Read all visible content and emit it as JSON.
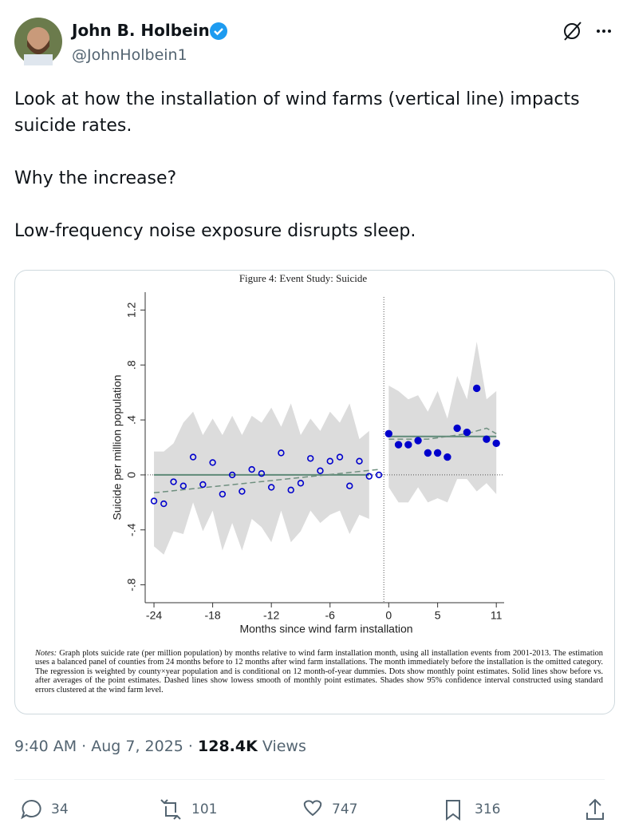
{
  "header": {
    "name": "John B. Holbein",
    "handle": "@JohnHolbein1"
  },
  "text": [
    "Look at how the installation of wind farms (vertical line) impacts suicide rates.",
    "Why the increase?",
    "Low-frequency noise exposure disrupts sleep."
  ],
  "chart_data": {
    "type": "scatter",
    "title": "Figure 4: Event Study: Suicide",
    "ylabel": "Suicide per million population",
    "xlabel": "Months since wind farm installation",
    "notes_label": "Notes:",
    "notes": "Graph plots suicide rate (per million population) by months relative to wind farm installation month, using all installation events from 2001-2013. The estimation uses a balanced panel of counties from 24 months before to 12 months after wind farm installations. The month immediately before the installation is the omitted category. The regression is weighted by county×year population and is conditional on 12 month-of-year dummies. Dots show monthly point estimates. Solid lines show before vs. after averages of the point estimates. Dashed lines show lowess smooth of monthly point estimates. Shades show 95% confidence interval constructed using standard errors clustered at the wind farm level.",
    "xlim": [
      -24.9,
      11.8
    ],
    "ylim": [
      -0.93,
      1.33
    ],
    "xticks": [
      -24,
      -18,
      -12,
      -6,
      0,
      5,
      11
    ],
    "yticks": [
      {
        "value": -0.8,
        "label": "-.8"
      },
      {
        "value": -0.4,
        "label": "-.4"
      },
      0,
      {
        "value": 0.4,
        "label": ".4"
      },
      {
        "value": 0.8,
        "label": ".8"
      },
      1.2
    ],
    "vline": -0.5,
    "hline": 0,
    "band_color": "#dcdcdc",
    "mean_color": "#5f8a78",
    "lowess_color": "#6f8f7f",
    "series": [
      {
        "color": "#0000cc",
        "marker": "hollow",
        "x": [
          -24,
          -23,
          -22,
          -21,
          -20,
          -19,
          -18,
          -17,
          -16,
          -15,
          -14,
          -13,
          -12,
          -11,
          -10,
          -9,
          -8,
          -7,
          -6,
          -5,
          -4,
          -3,
          -2,
          -1
        ],
        "values": [
          -0.19,
          -0.21,
          -0.05,
          -0.08,
          0.13,
          -0.07,
          0.09,
          -0.14,
          0.0,
          -0.12,
          0.04,
          0.01,
          -0.09,
          0.16,
          -0.11,
          -0.06,
          0.12,
          0.03,
          0.1,
          0.13,
          -0.08,
          0.1,
          -0.01,
          0.0
        ],
        "ci_upper": [
          0.17,
          0.17,
          0.23,
          0.38,
          0.46,
          0.29,
          0.41,
          0.29,
          0.43,
          0.29,
          0.43,
          0.38,
          0.49,
          0.35,
          0.52,
          0.29,
          0.41,
          0.32,
          0.46,
          0.38,
          0.52,
          0.26,
          0.32,
          null
        ],
        "ci_lower": [
          -0.52,
          -0.58,
          -0.41,
          -0.43,
          -0.2,
          -0.41,
          -0.26,
          -0.55,
          -0.35,
          -0.55,
          -0.32,
          -0.38,
          -0.49,
          -0.26,
          -0.49,
          -0.41,
          -0.26,
          -0.35,
          -0.29,
          -0.26,
          -0.43,
          -0.29,
          -0.32,
          null
        ],
        "mean": 0.0,
        "mean_x": [
          -24,
          -2
        ],
        "lowess_x": [
          -24,
          -1
        ],
        "lowess": [
          -0.13,
          0.04
        ]
      },
      {
        "color": "#0000cc",
        "marker": "filled",
        "x": [
          0,
          1,
          2,
          3,
          4,
          5,
          6,
          7,
          8,
          9,
          10,
          11
        ],
        "values": [
          0.3,
          0.22,
          0.22,
          0.25,
          0.16,
          0.16,
          0.13,
          0.34,
          0.31,
          0.63,
          0.26,
          0.23
        ],
        "ci_upper": [
          0.65,
          0.61,
          0.55,
          0.58,
          0.46,
          0.61,
          0.41,
          0.72,
          0.55,
          0.97,
          0.55,
          0.61
        ],
        "ci_lower": [
          -0.09,
          -0.2,
          -0.2,
          -0.09,
          -0.2,
          -0.17,
          -0.2,
          -0.03,
          -0.03,
          -0.12,
          -0.06,
          -0.14
        ],
        "mean": 0.28,
        "mean_x": [
          0,
          11
        ],
        "lowess_x": [
          0,
          4,
          8,
          10,
          11
        ],
        "lowess": [
          0.26,
          0.26,
          0.3,
          0.34,
          0.3
        ]
      }
    ]
  },
  "footer": {
    "time": "9:40 AM · Aug 7, 2025 · ",
    "views": "128.4K",
    "views_label": " Views"
  },
  "actions": {
    "replies": "34",
    "reposts": "101",
    "likes": "747",
    "bookmarks": "316"
  }
}
